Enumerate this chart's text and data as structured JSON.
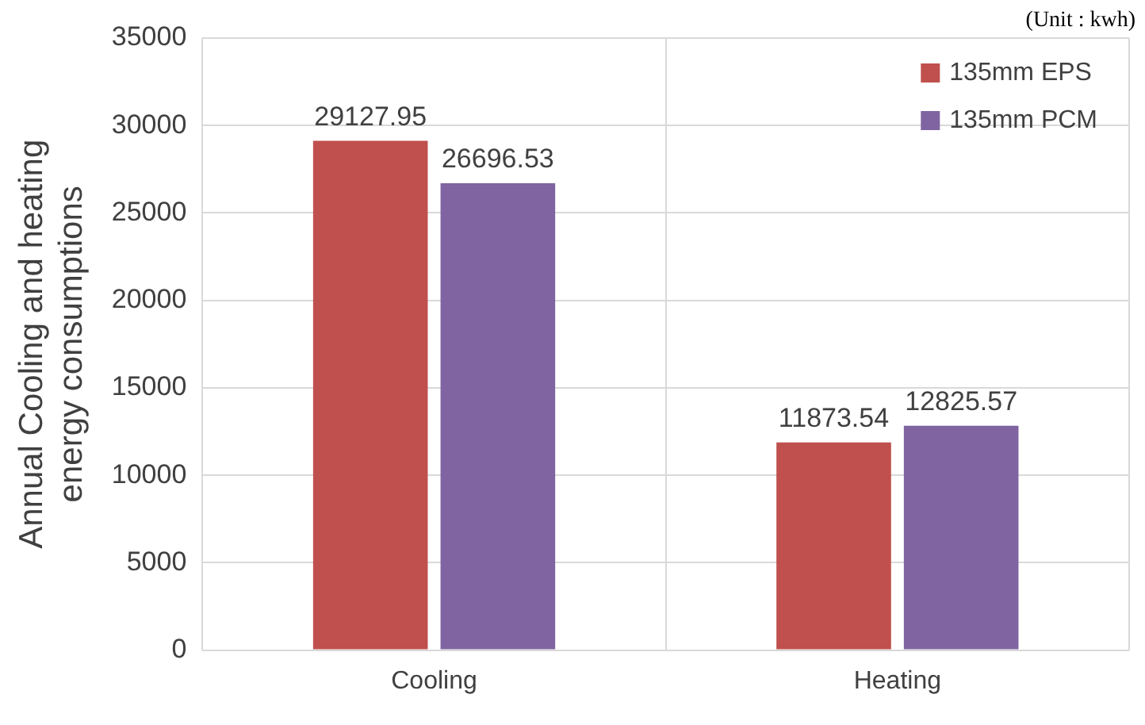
{
  "chart_data": {
    "type": "bar",
    "ylabel": "Annual Cooling and heating energy consumptions",
    "annotations": [
      "(Unit : kwh)"
    ],
    "categories": [
      "Cooling",
      "Heating"
    ],
    "series": [
      {
        "name": "135mm EPS",
        "color": "#c0504d",
        "values": [
          29127.95,
          11873.54
        ]
      },
      {
        "name": "135mm PCM",
        "color": "#8064a2",
        "values": [
          26696.53,
          12825.57
        ]
      }
    ],
    "ylim": [
      0,
      35000
    ],
    "yticks": [
      0,
      5000,
      10000,
      15000,
      20000,
      25000,
      30000,
      35000
    ],
    "grid": true,
    "legend": "top right",
    "data_labels": true
  }
}
